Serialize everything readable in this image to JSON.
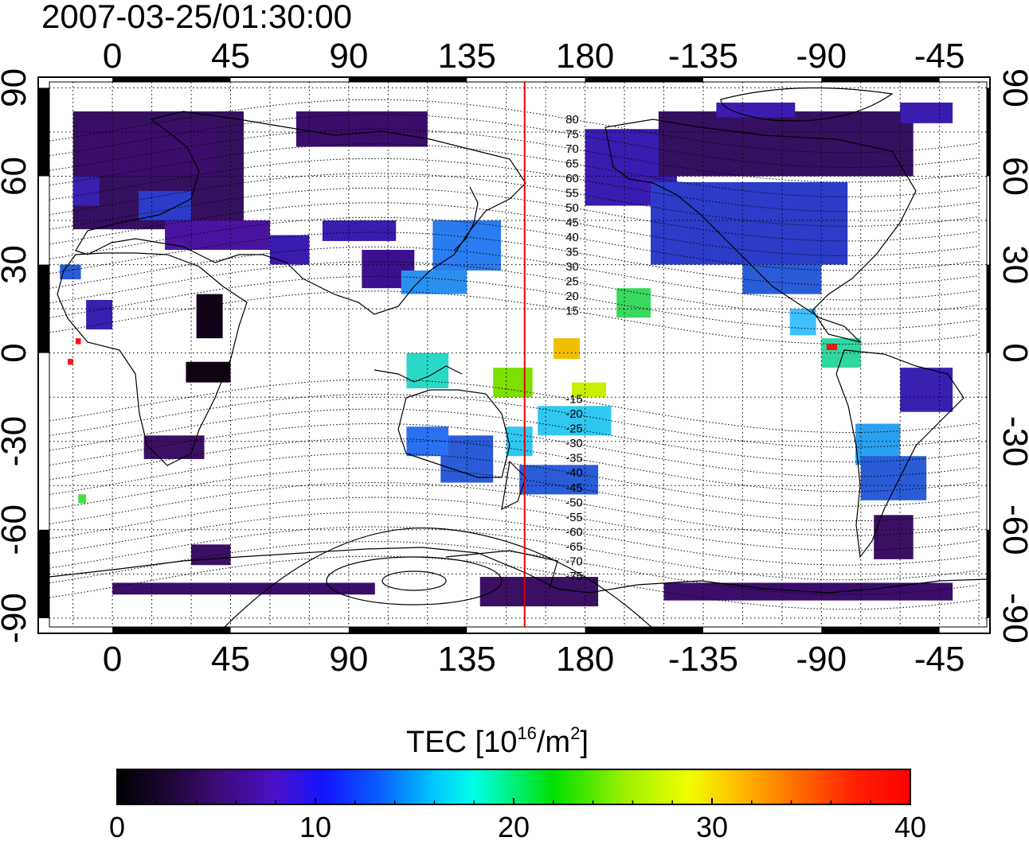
{
  "title": "2007-03-25/01:30:00",
  "map": {
    "lon_ticks": [
      "0",
      "45",
      "90",
      "135",
      "180",
      "-135",
      "-90",
      "-45"
    ],
    "lon_values": [
      0,
      45,
      90,
      135,
      180,
      225,
      270,
      315
    ],
    "lat_ticks": [
      "90",
      "60",
      "30",
      "0",
      "-30",
      "-60",
      "-90"
    ],
    "lat_values": [
      90,
      60,
      30,
      0,
      -30,
      -60,
      -90
    ],
    "lon_range": [
      -24,
      333
    ],
    "lat_range": [
      -93,
      92
    ],
    "grid": true,
    "grid_step_deg": 15,
    "terminator_lon": 157,
    "magnetic_latitude_labels": [
      "80",
      "75",
      "70",
      "65",
      "60",
      "55",
      "50",
      "45",
      "40",
      "35",
      "30",
      "25",
      "20",
      "15",
      "-15",
      "-20",
      "-25",
      "-30",
      "-35",
      "-40",
      "-45",
      "-50",
      "-55",
      "-60",
      "-65",
      "-70",
      "-75"
    ],
    "magnetic_latitude_values": [
      80,
      75,
      70,
      65,
      60,
      55,
      50,
      45,
      40,
      35,
      30,
      25,
      20,
      15,
      -15,
      -20,
      -25,
      -30,
      -35,
      -40,
      -45,
      -50,
      -55,
      -60,
      -65,
      -70,
      -75
    ]
  },
  "colorbar": {
    "label_prefix": "TEC  [10",
    "label_exp1": "16",
    "label_mid": "/m",
    "label_exp2": "2",
    "label_suffix": "]",
    "min": 0,
    "max": 40,
    "ticks": [
      "0",
      "10",
      "20",
      "30",
      "40"
    ],
    "tick_values": [
      0,
      10,
      20,
      30,
      40
    ],
    "colormap": "jet-like: black, purple, blue, cyan, green, yellow, orange, red"
  }
}
